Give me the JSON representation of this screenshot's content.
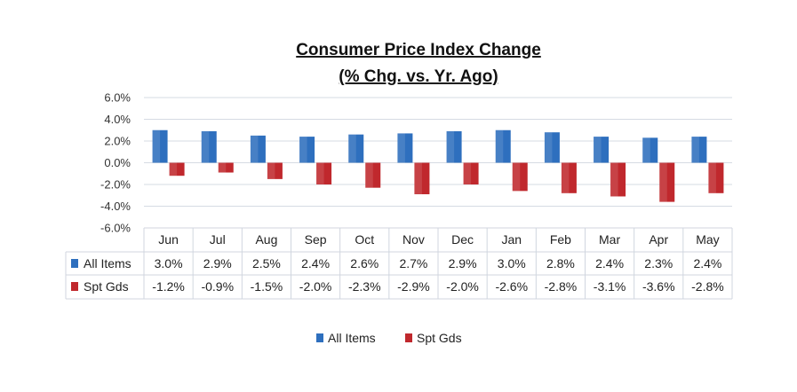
{
  "chart_data": {
    "type": "bar",
    "title": "Consumer Price Index Change",
    "subtitle": "(% Chg. vs. Yr. Ago)",
    "categories": [
      "Jun",
      "Jul",
      "Aug",
      "Sep",
      "Oct",
      "Nov",
      "Dec",
      "Jan",
      "Feb",
      "Mar",
      "Apr",
      "May"
    ],
    "series": [
      {
        "name": "All Items",
        "color": "#2E6FBE",
        "values": [
          3.0,
          2.9,
          2.5,
          2.4,
          2.6,
          2.7,
          2.9,
          3.0,
          2.8,
          2.4,
          2.3,
          2.4
        ],
        "labels": [
          "3.0%",
          "2.9%",
          "2.5%",
          "2.4%",
          "2.6%",
          "2.7%",
          "2.9%",
          "3.0%",
          "2.8%",
          "2.4%",
          "2.3%",
          "2.4%"
        ]
      },
      {
        "name": "Spt Gds",
        "color": "#C0282D",
        "values": [
          -1.2,
          -0.9,
          -1.5,
          -2.0,
          -2.3,
          -2.9,
          -2.0,
          -2.6,
          -2.8,
          -3.1,
          -3.6,
          -2.8
        ],
        "labels": [
          "-1.2%",
          "-0.9%",
          "-1.5%",
          "-2.0%",
          "-2.3%",
          "-2.9%",
          "-2.0%",
          "-2.6%",
          "-2.8%",
          "-3.1%",
          "-3.6%",
          "-2.8%"
        ]
      }
    ],
    "ylim": [
      -6,
      6
    ],
    "yticks": [
      6,
      4,
      2,
      0,
      -2,
      -4,
      -6
    ],
    "ytick_labels": [
      "6.0%",
      "4.0%",
      "2.0%",
      "0.0%",
      "-2.0%",
      "-4.0%",
      "-6.0%"
    ],
    "grid": true,
    "data_table": true,
    "legend": "bottom-center"
  }
}
